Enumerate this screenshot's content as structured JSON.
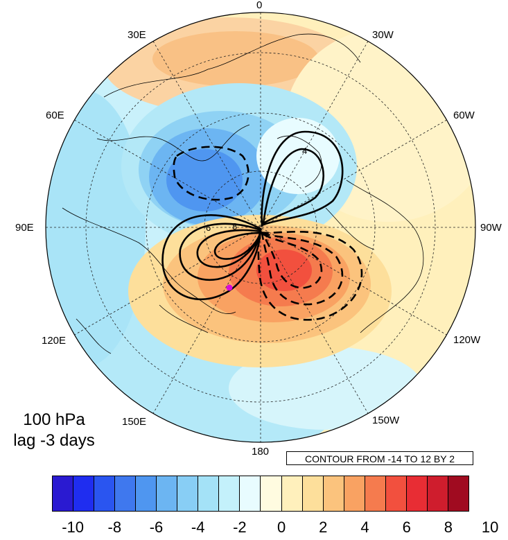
{
  "map": {
    "projection": "north polar stereographic",
    "longitude_labels": [
      "0",
      "30W",
      "60W",
      "90W",
      "120W",
      "150W",
      "180",
      "150E",
      "120E",
      "90E",
      "60E",
      "30E"
    ],
    "level": "100 hPa",
    "lag": "lag -3 days",
    "contour_info": "CONTOUR FROM -14 TO 12 BY 2",
    "contour_labels": [
      "6",
      "8",
      "4"
    ],
    "marker_color": "#d90bd9"
  },
  "colorbar": {
    "colors": [
      "#2a1ad1",
      "#1f2df0",
      "#2a55f0",
      "#3f78ee",
      "#4f96f0",
      "#6cb5f2",
      "#88cef5",
      "#a4e2f7",
      "#c4f1fb",
      "#e8fcff",
      "#fffbe0",
      "#fff0bc",
      "#fddf9b",
      "#fbc37d",
      "#f9a262",
      "#f57b4e",
      "#f2503e",
      "#e82d34",
      "#cf1d2d",
      "#a00b20"
    ],
    "labels": [
      "-10",
      "-8",
      "-6",
      "-4",
      "-2",
      "0",
      "2",
      "4",
      "6",
      "8",
      "10"
    ]
  }
}
